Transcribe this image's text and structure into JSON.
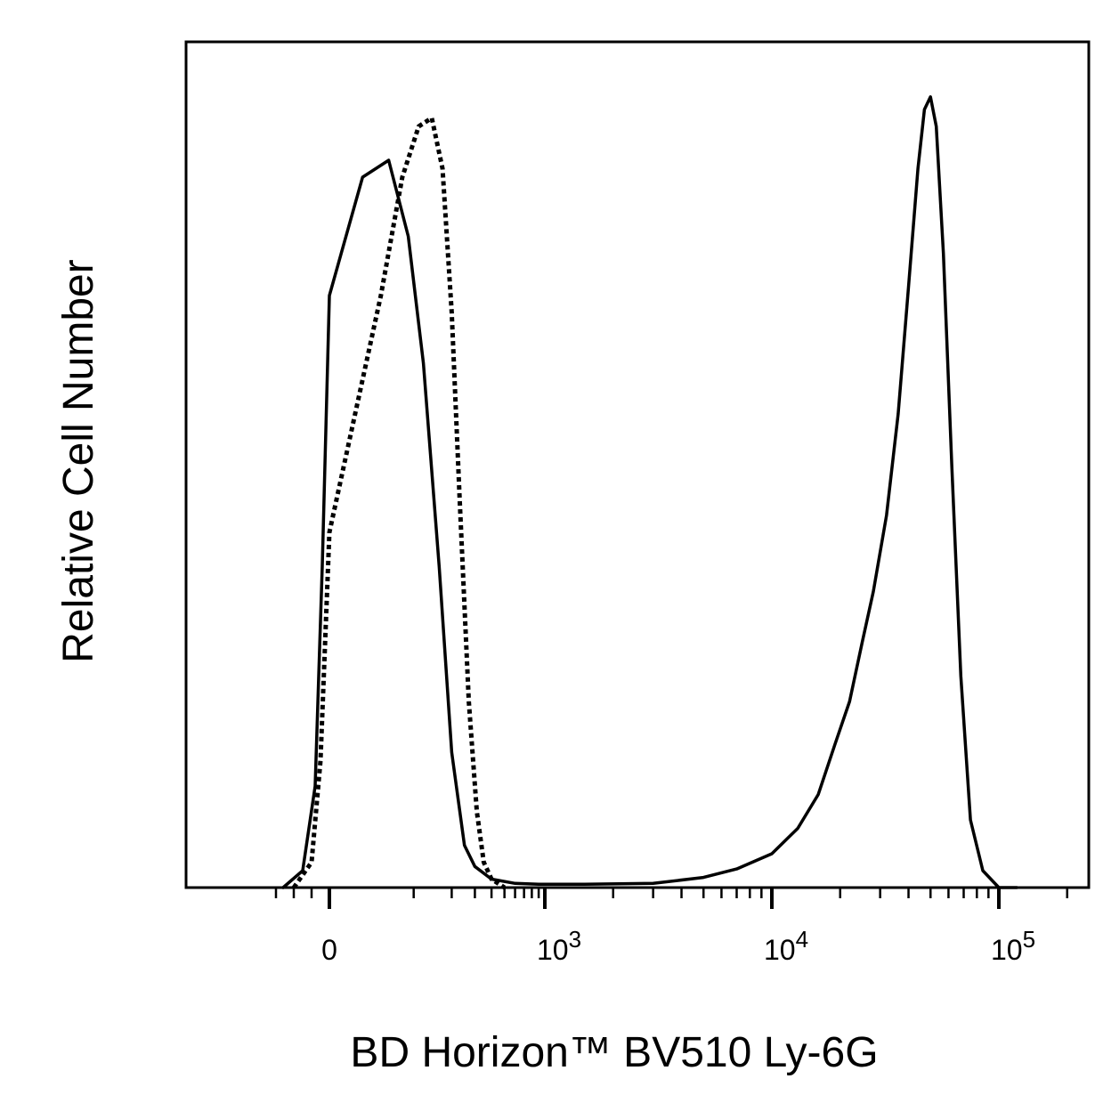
{
  "chart_data": {
    "type": "line",
    "title": "",
    "xlabel": "BD Horizon™ BV510 Ly-6G",
    "ylabel": "Relative Cell Number",
    "x_scale": "biexponential",
    "xlim": [
      -400,
      200000
    ],
    "ylim": [
      0,
      100
    ],
    "grid": false,
    "legend": "none",
    "x_ticks": [
      {
        "value": 0,
        "base": "0",
        "exp": ""
      },
      {
        "value": 1000,
        "base": "10",
        "exp": "3"
      },
      {
        "value": 10000,
        "base": "10",
        "exp": "4"
      },
      {
        "value": 100000,
        "base": "10",
        "exp": "5"
      }
    ],
    "series": [
      {
        "style": "solid",
        "color": "#000000",
        "x": [
          -260,
          -150,
          -80,
          -40,
          0,
          30,
          60,
          90,
          120,
          160,
          200,
          250,
          300,
          400,
          600,
          900,
          1500,
          3000,
          5000,
          7000,
          10000,
          13000,
          16000,
          19000,
          22000,
          25000,
          28000,
          32000,
          36000,
          40000,
          44000,
          47000,
          50000,
          53000,
          57000,
          62000,
          68000,
          75000,
          85000,
          100000,
          120000
        ],
        "y": [
          0,
          2,
          12,
          38,
          70,
          84,
          86,
          77,
          62,
          38,
          16,
          5,
          2.5,
          1,
          0.5,
          0.4,
          0.4,
          0.5,
          1.2,
          2.2,
          4,
          7,
          11,
          17,
          22,
          29,
          35,
          44,
          56,
          71,
          85,
          92,
          93.5,
          90,
          75,
          50,
          25,
          8,
          2,
          0,
          0
        ]
      },
      {
        "style": "dotted",
        "color": "#000000",
        "x": [
          -200,
          -100,
          -50,
          0,
          50,
          80,
          110,
          140,
          170,
          200,
          230,
          270,
          310,
          350,
          400,
          500
        ],
        "y": [
          0,
          3,
          15,
          42,
          70,
          84,
          90,
          91,
          85,
          68,
          46,
          22,
          9,
          3,
          1,
          0
        ]
      }
    ]
  }
}
